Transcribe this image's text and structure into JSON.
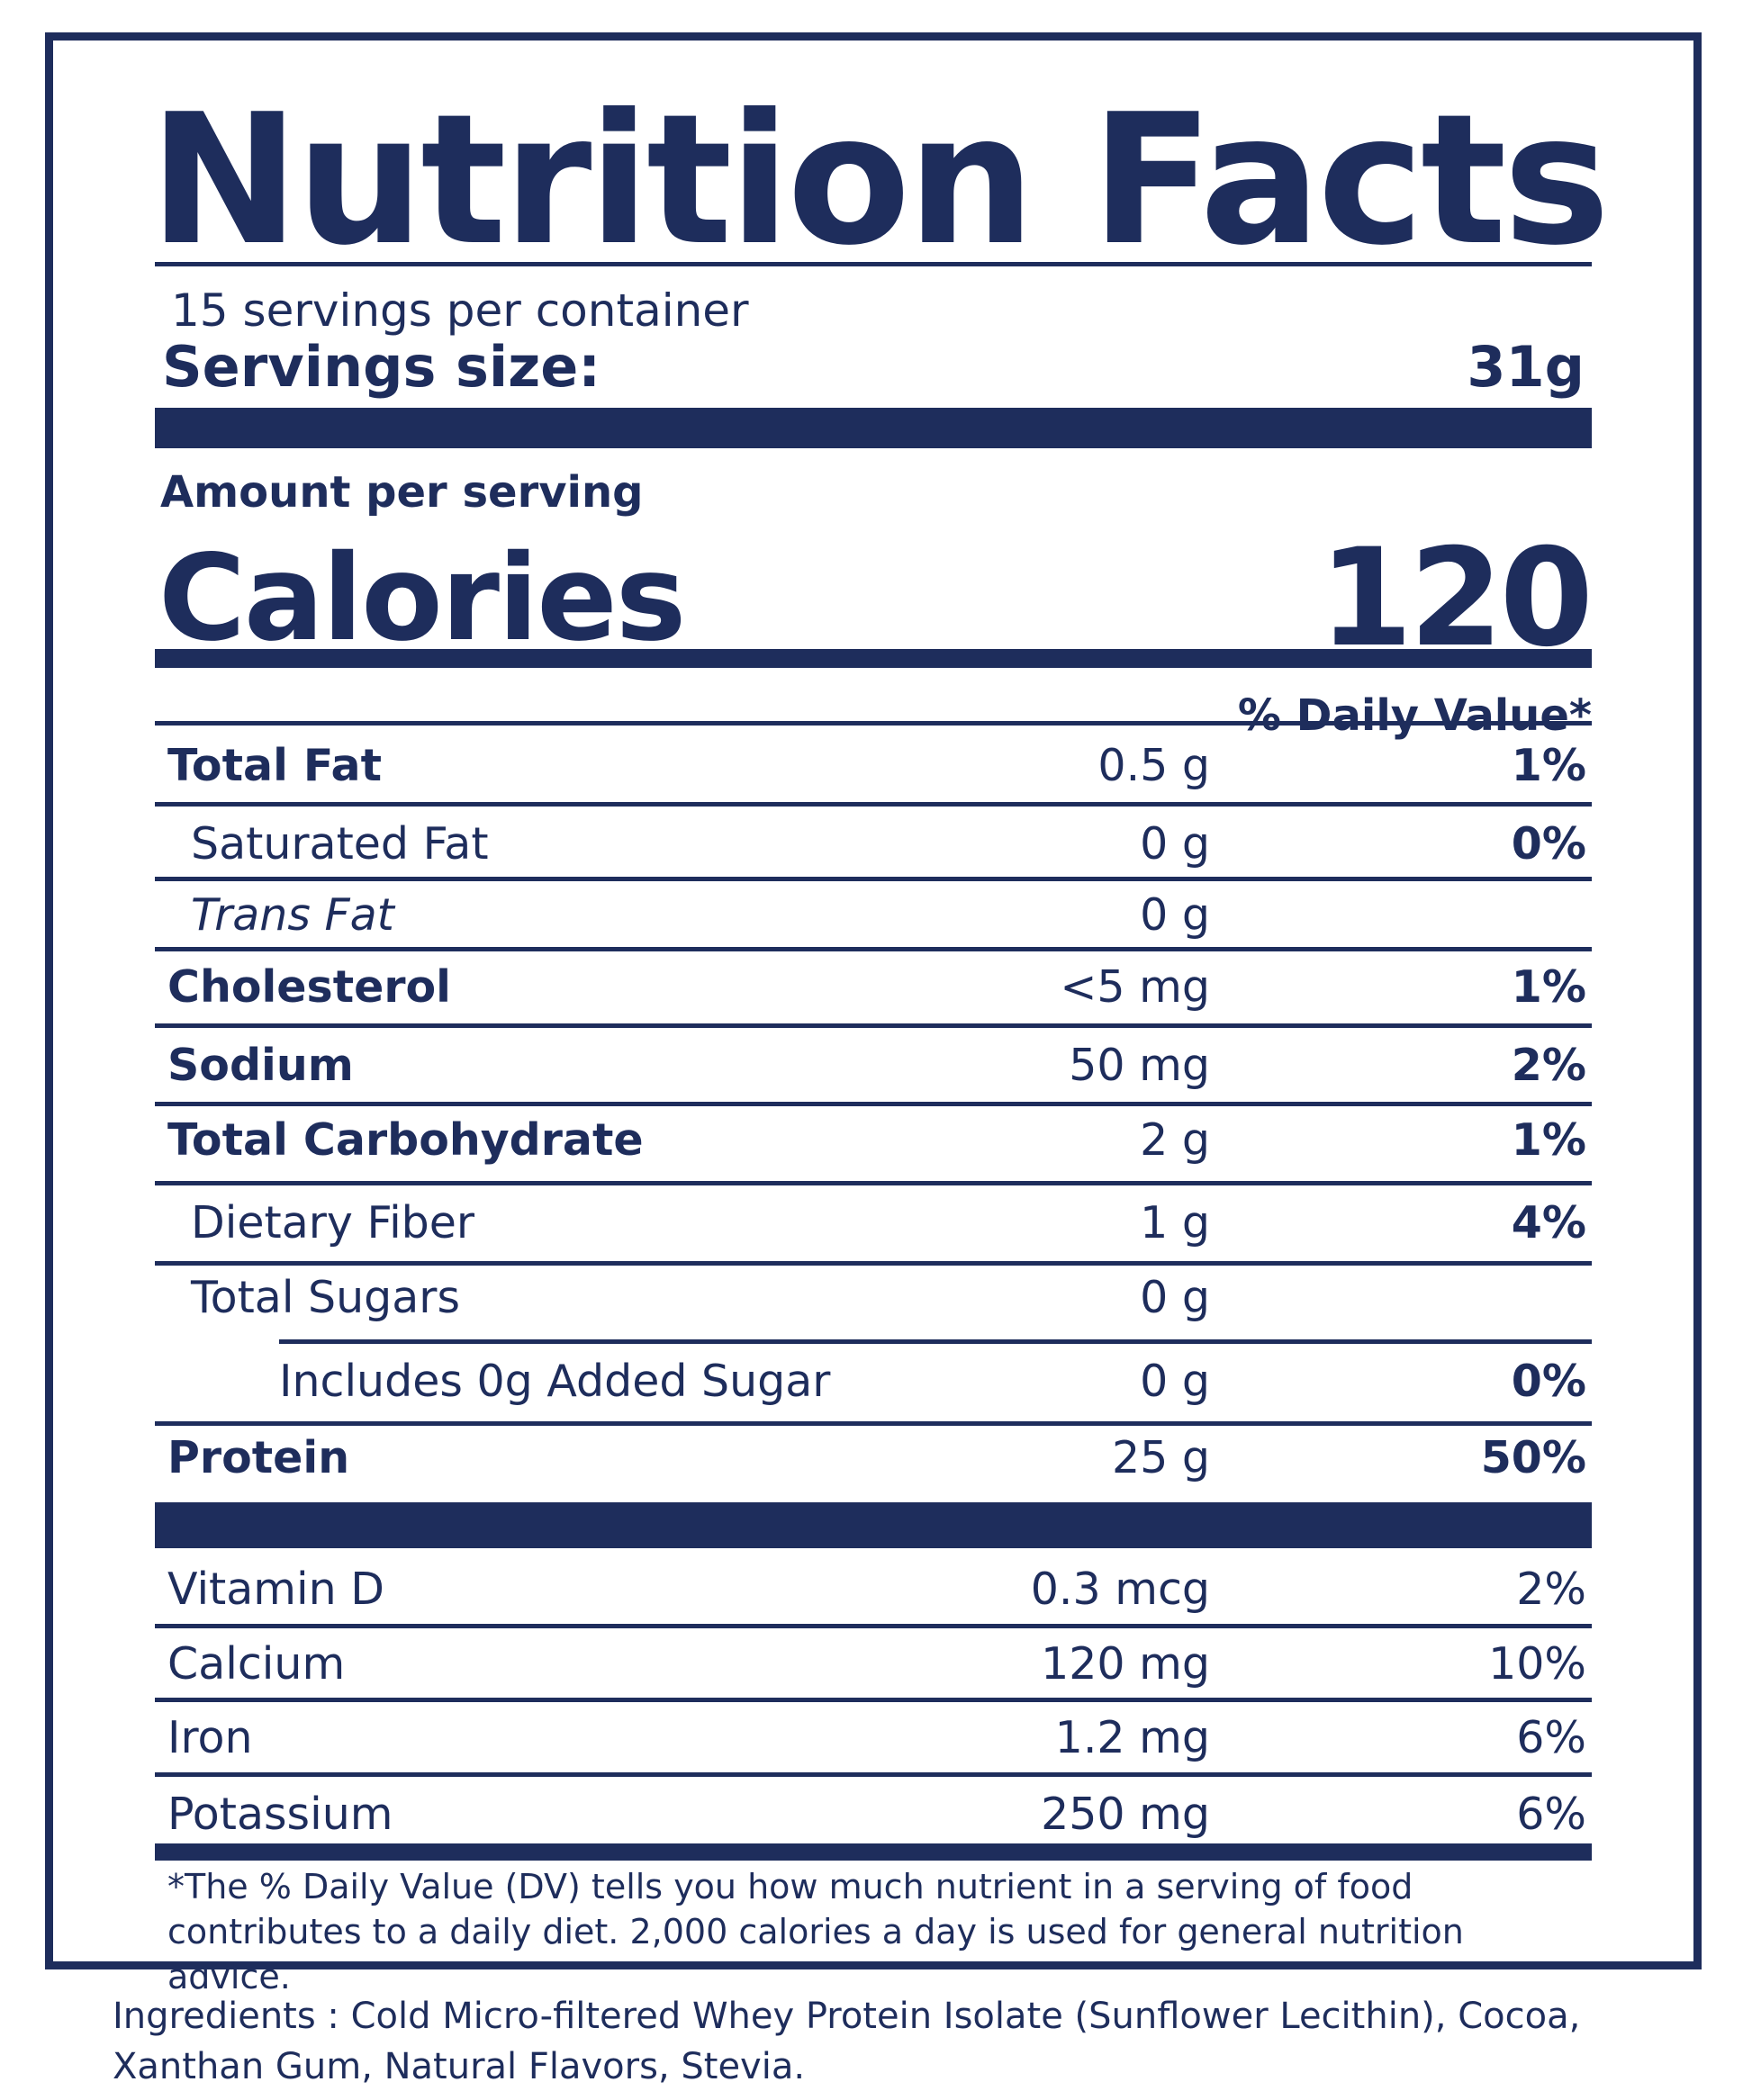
{
  "title": "Nutrition Facts",
  "servings_per_container": "15 servings per container",
  "serving_size_label": "Servings size:",
  "serving_size_value": "31g",
  "amount_per_serving": "Amount per serving",
  "calories_label": "Calories",
  "calories_value": "120",
  "daily_value_header": "% Daily Value*",
  "nutrients": [
    {
      "name": "Total Fat",
      "amount": "0.5 g",
      "dv": "1%"
    },
    {
      "name": "Saturated Fat",
      "amount": "0 g",
      "dv": "0%"
    },
    {
      "name": "Trans Fat",
      "amount": "0 g",
      "dv": ""
    },
    {
      "name": "Cholesterol",
      "amount": "<5 mg",
      "dv": "1%"
    },
    {
      "name": "Sodium",
      "amount": "50 mg",
      "dv": "2%"
    },
    {
      "name": "Total Carbohydrate",
      "amount": "2 g",
      "dv": "1%"
    },
    {
      "name": "Dietary Fiber",
      "amount": "1 g",
      "dv": "4%"
    },
    {
      "name": "Total Sugars",
      "amount": "0 g",
      "dv": ""
    },
    {
      "name": "Includes 0g Added Sugar",
      "amount": "0 g",
      "dv": "0%"
    },
    {
      "name": "Protein",
      "amount": "25 g",
      "dv": "50%"
    }
  ],
  "vitamins": [
    {
      "name": "Vitamin D",
      "amount": "0.3 mcg",
      "dv": "2%"
    },
    {
      "name": "Calcium",
      "amount": "120 mg",
      "dv": "10%"
    },
    {
      "name": "Iron",
      "amount": "1.2 mg",
      "dv": "6%"
    },
    {
      "name": "Potassium",
      "amount": "250 mg",
      "dv": "6%"
    }
  ],
  "footnote": "*The % Daily Value (DV) tells you how much nutrient in a serving of food contributes to a daily diet. 2,000 calories a day is used for general nutrition advice.",
  "ingredients": "Ingredients :  Cold Micro-filtered Whey Protein Isolate (Sunflower Lecithin), Cocoa, Xanthan Gum, Natural Flavors, Stevia.",
  "colors": {
    "ink": "#1e2d5c",
    "background": "#ffffff"
  }
}
